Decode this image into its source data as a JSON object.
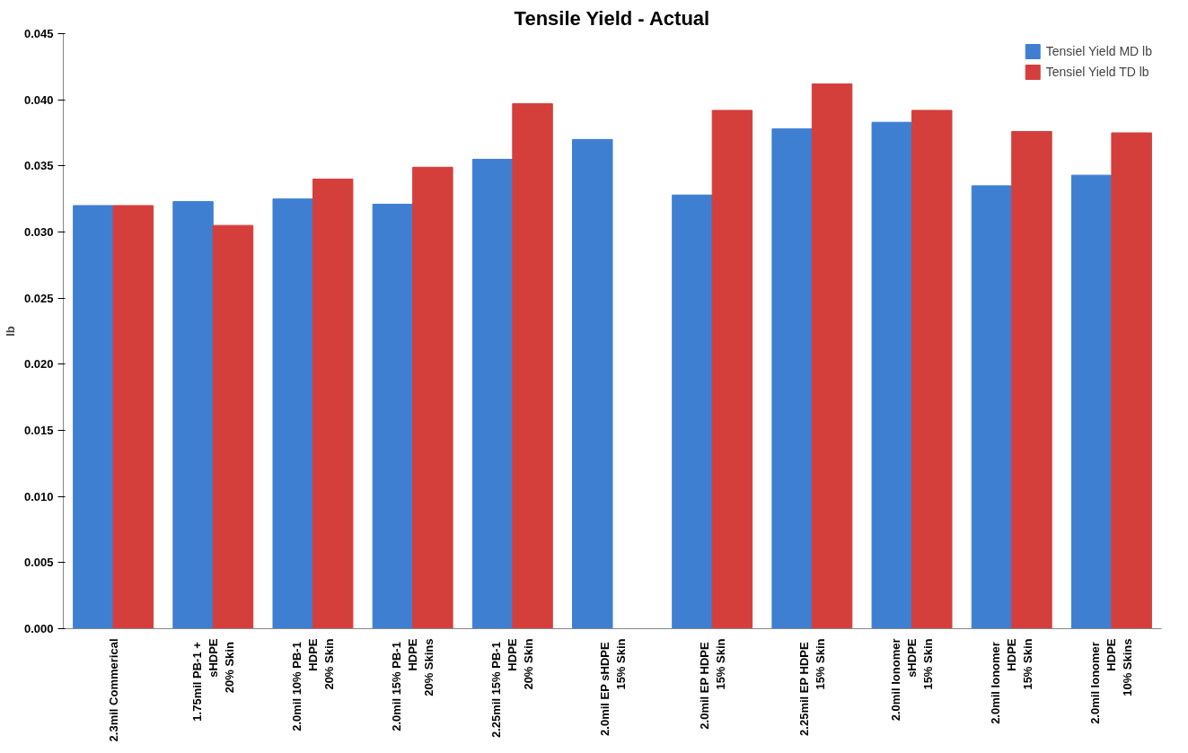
{
  "chart_data": {
    "type": "bar",
    "title": "Tensile Yield - Actual",
    "ylabel": "lb",
    "categories": [
      "2.3mil Commerical",
      "1.75mil  PB-1 +\nsHDPE\n20%  Skin",
      "2.0mil  10% PB-1\nHDPE\n20% Skin",
      "2.0mil  15% PB-1\nHDPE\n20% Skins",
      "2.25mil  15% PB-1\nHDPE\n20% Skin",
      "2.0mil  EP sHDPE\n15% Skin",
      "2.0mil  EP HDPE\n15% Skin",
      "2.25mil  EP HDPE\n15% Skin",
      "2.0mil Ionomer\nsHDPE\n15% Skin",
      "2.0mil  Ionomer\nHDPE\n15% Skin",
      "2.0mil  Ionomer\nHDPE\n10% Skins"
    ],
    "series": [
      {
        "name": "Tensiel Yield MD lb",
        "color": "#3f7fd2",
        "values": [
          0.032,
          0.0323,
          0.0325,
          0.0321,
          0.0355,
          0.037,
          0.0328,
          0.0378,
          0.0383,
          0.0335,
          0.0343
        ]
      },
      {
        "name": "Tensiel Yield TD lb",
        "color": "#d43f3c",
        "values": [
          0.032,
          0.0305,
          0.034,
          0.0349,
          0.0397,
          null,
          0.0392,
          0.0412,
          0.0392,
          0.0376,
          0.0375
        ]
      }
    ],
    "ylim": [
      0,
      0.045
    ],
    "yticks": [
      {
        "value": 0,
        "label": "0.000"
      },
      0.005,
      {
        "value": 0.01,
        "label": "0.010"
      },
      0.015,
      {
        "value": 0.02,
        "label": "0.020"
      },
      0.025,
      {
        "value": 0.03,
        "label": "0.030"
      },
      0.035,
      {
        "value": 0.04,
        "label": "0.040"
      },
      0.045
    ],
    "grid": false,
    "legend": "top right"
  }
}
